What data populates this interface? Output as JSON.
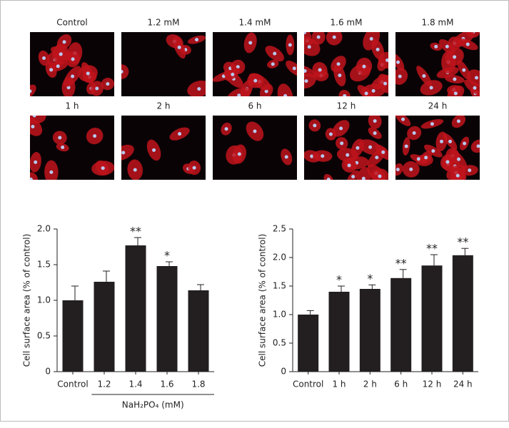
{
  "panels": [
    [
      "Control",
      "1.2 mM",
      "1.4 mM",
      "1.6 mM",
      "1.8 mM"
    ],
    [
      "1 h",
      "2 h",
      "6 h",
      "12 h",
      "24 h"
    ]
  ],
  "chart_data": [
    {
      "type": "bar",
      "ylabel": "Cell surface area (% of control)",
      "xlabel": "NaH₂PO₄ (mM)",
      "categories": [
        "Control",
        "1.2",
        "1.4",
        "1.6",
        "1.8"
      ],
      "values": [
        1.0,
        1.26,
        1.77,
        1.48,
        1.14
      ],
      "errors": [
        0.2,
        0.15,
        0.11,
        0.06,
        0.08
      ],
      "annotations": [
        null,
        null,
        "**",
        "*",
        null
      ],
      "color": "#231f20",
      "ylim": [
        0,
        2
      ],
      "yticks": [
        0,
        0.5,
        {
          "value": 1,
          "label": "1.0"
        },
        1.5,
        {
          "value": 2,
          "label": "2.0"
        }
      ]
    },
    {
      "type": "bar",
      "ylabel": "Cell surface area (% of control)",
      "categories": [
        "Control",
        "1 h",
        "2 h",
        "6 h",
        "12 h",
        "24 h"
      ],
      "values": [
        1.0,
        1.4,
        1.45,
        1.64,
        1.86,
        2.04
      ],
      "errors": [
        0.07,
        0.1,
        0.07,
        0.15,
        0.19,
        0.12
      ],
      "annotations": [
        null,
        "*",
        "*",
        "**",
        "**",
        "**"
      ],
      "color": "#231f20",
      "ylim": [
        0,
        2.5
      ],
      "yticks": [
        0,
        0.5,
        {
          "value": 1,
          "label": "1.0"
        },
        1.5,
        {
          "value": 2,
          "label": "2.0"
        },
        2.5
      ]
    }
  ]
}
